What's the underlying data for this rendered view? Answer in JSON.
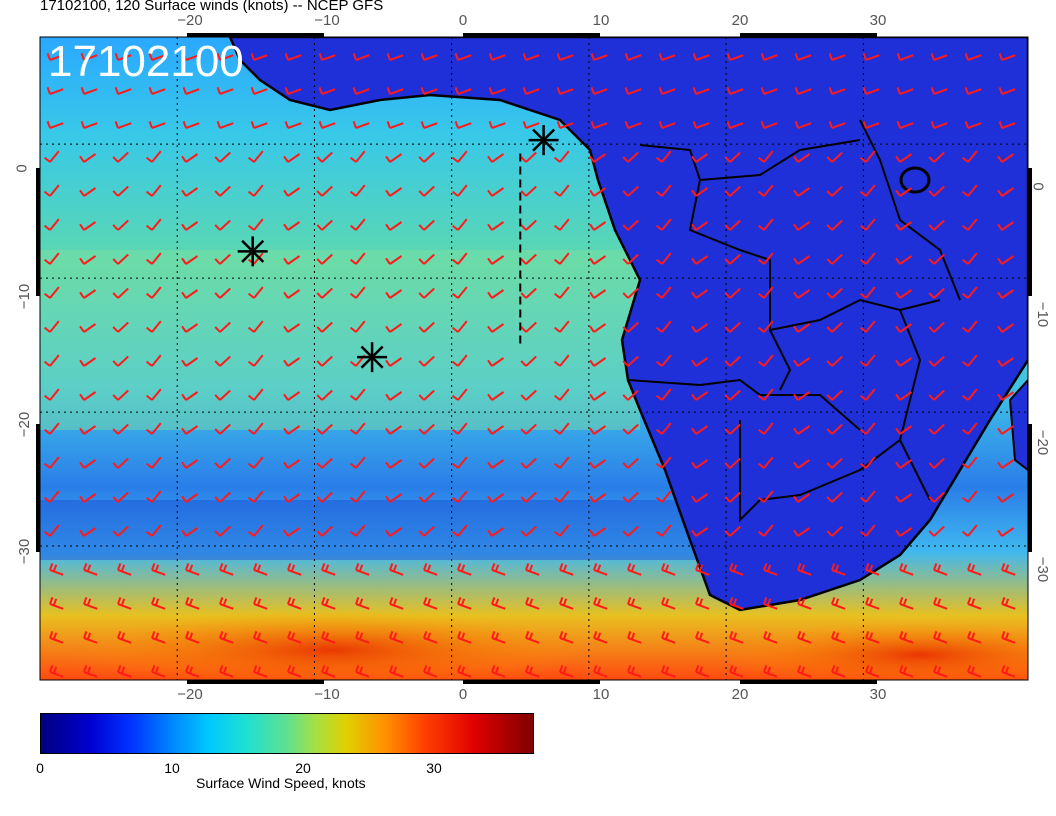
{
  "title": "17102100, 120 Surface winds (knots) -- NCEP GFS",
  "datestamp": "17102100",
  "lon_ticks_top": [
    "−20",
    "−10",
    "0",
    "10",
    "20",
    "30"
  ],
  "lon_ticks_bottom": [
    "−20",
    "−10",
    "0",
    "10",
    "20",
    "30"
  ],
  "lat_ticks_left": [
    "0",
    "−10",
    "−20",
    "−30"
  ],
  "lat_ticks_right": [
    "0",
    "−10",
    "−20",
    "−30"
  ],
  "colorbar": {
    "ticks": [
      "0",
      "10",
      "20",
      "30"
    ],
    "label": "Surface Wind Speed, knots",
    "min": 0,
    "max": 36
  },
  "map": {
    "lon_range": [
      -30,
      42
    ],
    "lat_range": [
      -40,
      8
    ],
    "markers": [
      {
        "lon": -14.5,
        "lat": -8.0
      },
      {
        "lon": -5.8,
        "lat": -15.9
      },
      {
        "lon": 6.7,
        "lat": 0.3
      }
    ],
    "track": [
      {
        "lon": 5.0,
        "lat": -0.7
      },
      {
        "lon": 5.0,
        "lat": -15.2
      }
    ]
  },
  "colors": {
    "barb": "#ff1a1a",
    "land": "#1a2fd0",
    "ocean_cool": "#2a8cff",
    "coast": "#000000"
  }
}
